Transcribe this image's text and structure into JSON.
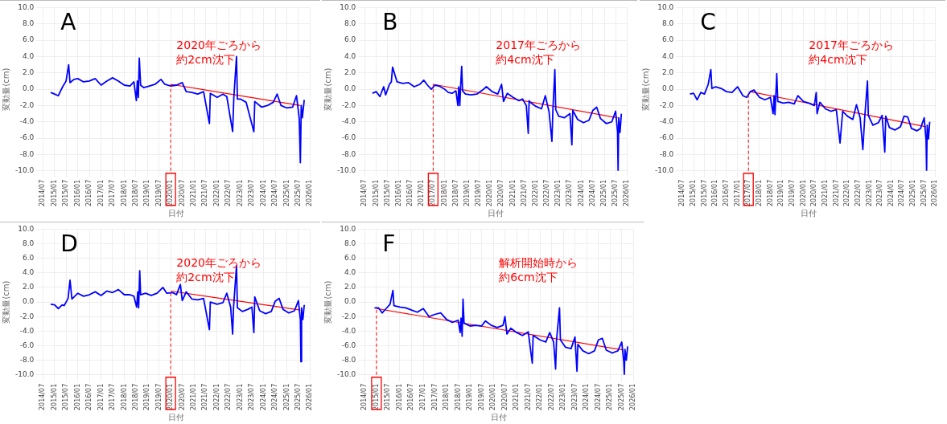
{
  "chart_data": [
    {
      "type": "line",
      "title": "A",
      "xlabel": "日付",
      "ylabel": "変動量(cm)",
      "grid": true,
      "annotations": [
        "2020年ごろから",
        "約2cm沈下"
      ],
      "xlim": [
        "2014-07",
        "2026-01"
      ],
      "ylim": [
        -10,
        10
      ],
      "xticks": [
        {
          "value": "2014-07",
          "label": "2014/07"
        },
        {
          "value": "2015-01",
          "label": "2015/01"
        },
        {
          "value": "2015-07",
          "label": "2015/07"
        },
        {
          "value": "2016-01",
          "label": "2016/01"
        },
        {
          "value": "2016-07",
          "label": "2016/07"
        },
        {
          "value": "2017-01",
          "label": "2017/01"
        },
        {
          "value": "2017-07",
          "label": "2017/07"
        },
        {
          "value": "2018-01",
          "label": "2018/01"
        },
        {
          "value": "2018-07",
          "label": "2018/07"
        },
        {
          "value": "2019-01",
          "label": "2019/01"
        },
        {
          "value": "2019-07",
          "label": "2019/07"
        },
        {
          "value": "2020-01",
          "label": "2020/01"
        },
        {
          "value": "2020-07",
          "label": "2020/07"
        },
        {
          "value": "2021-01",
          "label": "2021/01"
        },
        {
          "value": "2021-07",
          "label": "2021/07"
        },
        {
          "value": "2022-01",
          "label": "2022/01"
        },
        {
          "value": "2022-07",
          "label": "2022/07"
        },
        {
          "value": "2023-01",
          "label": "2023/01"
        },
        {
          "value": "2023-07",
          "label": "2023/07"
        },
        {
          "value": "2024-01",
          "label": "2024/01"
        },
        {
          "value": "2024-07",
          "label": "2024/07"
        },
        {
          "value": "2025-01",
          "label": "2025/01"
        },
        {
          "value": "2025-07",
          "label": "2025/07"
        },
        {
          "value": "2026-01",
          "label": "2026/01"
        }
      ],
      "yticks": [
        {
          "value": -10,
          "label": "-10.0"
        },
        {
          "value": -8,
          "label": "-8.0"
        },
        {
          "value": -6,
          "label": "-6.0"
        },
        {
          "value": -4,
          "label": "-4.0"
        },
        {
          "value": -2,
          "label": "-2.0"
        },
        {
          "value": 0,
          "label": "0.0"
        },
        {
          "value": 2,
          "label": "2.0"
        },
        {
          "value": 4,
          "label": "4.0"
        },
        {
          "value": 6,
          "label": "6.0"
        },
        {
          "value": 8,
          "label": "8.0"
        },
        {
          "value": 10,
          "label": "10.0"
        }
      ],
      "ref_lines": [
        {
          "axis": "x",
          "value": "2020-01",
          "color": "#ff0000",
          "line_style": "dashed"
        }
      ],
      "series": [
        {
          "color": "#0000ff",
          "x": [
            "2014-11",
            "2015-01",
            "2015-03",
            "2015-05",
            "2015-07",
            "2015-08-10",
            "2015-09",
            "2015-11",
            "2016-01",
            "2016-04",
            "2016-07",
            "2016-10",
            "2017-01",
            "2017-04",
            "2017-07",
            "2017-10",
            "2018-01",
            "2018-04",
            "2018-06",
            "2018-07-10",
            "2018-07-25",
            "2018-08-10",
            "2018-08-25",
            "2018-09-15",
            "2018-11",
            "2019-02",
            "2019-05",
            "2019-08",
            "2019-10",
            "2020-01",
            "2020-04",
            "2020-07",
            "2020-09",
            "2020-12",
            "2021-03",
            "2021-06",
            "2021-09-01",
            "2021-09-15",
            "2022-01",
            "2022-04",
            "2022-06",
            "2022-09-01",
            "2022-09-20",
            "2022-11-01",
            "2022-11-15",
            "2023-01",
            "2023-04",
            "2023-08-01",
            "2023-08-15",
            "2023-12",
            "2024-03",
            "2024-06",
            "2024-08",
            "2024-10",
            "2025-01",
            "2025-04",
            "2025-06",
            "2025-07-15",
            "2025-08-01",
            "2025-08-15",
            "2025-09",
            "2025-10"
          ],
          "values": [
            -0.4,
            -0.6,
            -0.8,
            0.2,
            1.0,
            3.0,
            0.8,
            1.2,
            1.3,
            0.9,
            1.0,
            1.3,
            0.5,
            1.0,
            1.4,
            1.0,
            0.5,
            0.4,
            0.9,
            -1.4,
            1.0,
            -1.0,
            3.8,
            0.5,
            0.2,
            0.4,
            0.6,
            1.2,
            0.6,
            0.4,
            0.5,
            0.8,
            -0.3,
            -0.4,
            -0.6,
            -0.3,
            -4.2,
            -0.5,
            -1.0,
            -0.6,
            -0.9,
            -5.2,
            -1.0,
            4.0,
            -1.2,
            -1.2,
            -1.6,
            -5.2,
            -1.5,
            -2.2,
            -2.0,
            -1.6,
            -0.6,
            -2.0,
            -2.3,
            -2.2,
            -0.8,
            -3.6,
            -9.0,
            -2.0,
            -3.5,
            -1.3
          ]
        },
        {
          "type": "line",
          "color": "#ff0000",
          "x": [
            "2020-01",
            "2025-08"
          ],
          "values": [
            0.6,
            -2.0
          ]
        }
      ]
    },
    {
      "type": "line",
      "title": "B",
      "xlabel": "日付",
      "ylabel": "変動量(cm)",
      "grid": true,
      "annotations": [
        "2017年ごろから",
        "約4cm沈下"
      ],
      "xlim": [
        "2014-07",
        "2026-01"
      ],
      "ylim": [
        -10,
        10
      ],
      "xticks": [
        {
          "value": "2014-07",
          "label": "2014/07"
        },
        {
          "value": "2015-01",
          "label": "2015/01"
        },
        {
          "value": "2015-07",
          "label": "2015/07"
        },
        {
          "value": "2016-01",
          "label": "2016/01"
        },
        {
          "value": "2016-07",
          "label": "2016/07"
        },
        {
          "value": "2017-01",
          "label": "2017/01"
        },
        {
          "value": "2017-07",
          "label": "2017/07"
        },
        {
          "value": "2018-01",
          "label": "2018/01"
        },
        {
          "value": "2018-07",
          "label": "2018/07"
        },
        {
          "value": "2019-01",
          "label": "2019/01"
        },
        {
          "value": "2019-07",
          "label": "2019/07"
        },
        {
          "value": "2020-01",
          "label": "2020/01"
        },
        {
          "value": "2020-07",
          "label": "2020/07"
        },
        {
          "value": "2021-01",
          "label": "2021/01"
        },
        {
          "value": "2021-07",
          "label": "2021/07"
        },
        {
          "value": "2022-01",
          "label": "2022/01"
        },
        {
          "value": "2022-07",
          "label": "2022/07"
        },
        {
          "value": "2023-01",
          "label": "2023/01"
        },
        {
          "value": "2023-07",
          "label": "2023/07"
        },
        {
          "value": "2024-01",
          "label": "2024/01"
        },
        {
          "value": "2024-07",
          "label": "2024/07"
        },
        {
          "value": "2025-01",
          "label": "2025/01"
        },
        {
          "value": "2025-07",
          "label": "2025/07"
        },
        {
          "value": "2026-01",
          "label": "2026/01"
        }
      ],
      "yticks": [
        {
          "value": -10,
          "label": "-10.0"
        },
        {
          "value": -8,
          "label": "-8.0"
        },
        {
          "value": -6,
          "label": "-6.0"
        },
        {
          "value": -4,
          "label": "-4.0"
        },
        {
          "value": -2,
          "label": "-2.0"
        },
        {
          "value": 0,
          "label": "0.0"
        },
        {
          "value": 2,
          "label": "2.0"
        },
        {
          "value": 4,
          "label": "4.0"
        },
        {
          "value": 6,
          "label": "6.0"
        },
        {
          "value": 8,
          "label": "8.0"
        },
        {
          "value": 10,
          "label": "10.0"
        }
      ],
      "ref_lines": [
        {
          "axis": "x",
          "value": "2017-07",
          "color": "#ff0000",
          "line_style": "dashed"
        }
      ],
      "series": [
        {
          "color": "#0000ff",
          "x": [
            "2014-11",
            "2015-01",
            "2015-03",
            "2015-05",
            "2015-06",
            "2015-08",
            "2015-09-01",
            "2015-09-20",
            "2015-12",
            "2016-03",
            "2016-06",
            "2016-09",
            "2016-12",
            "2017-02",
            "2017-04",
            "2017-06",
            "2017-08",
            "2017-10",
            "2018-01",
            "2018-03",
            "2018-05",
            "2018-07",
            "2018-08-01",
            "2018-08-15",
            "2018-09-01",
            "2018-09-15",
            "2018-10-01",
            "2018-10-15",
            "2018-12",
            "2019-03",
            "2019-06",
            "2019-09",
            "2019-11",
            "2020-02",
            "2020-05",
            "2020-07",
            "2020-08",
            "2020-10",
            "2021-01",
            "2021-04",
            "2021-06",
            "2021-08",
            "2021-09-01",
            "2021-09-15",
            "2021-10-01",
            "2022-01",
            "2022-04",
            "2022-06",
            "2022-08",
            "2022-09-15",
            "2022-10-01",
            "2022-11-01",
            "2022-11-15",
            "2023-01",
            "2023-04",
            "2023-07",
            "2023-08-01",
            "2023-08-15",
            "2023-11",
            "2024-02",
            "2024-05",
            "2024-07",
            "2024-09",
            "2024-11",
            "2025-02",
            "2025-05",
            "2025-07",
            "2025-08-01",
            "2025-08-10",
            "2025-08-20",
            "2025-09-10",
            "2025-10"
          ],
          "values": [
            -0.5,
            -0.3,
            -0.9,
            0.3,
            -0.7,
            0.6,
            0.9,
            2.7,
            0.9,
            0.7,
            0.8,
            0.3,
            0.6,
            1.1,
            0.5,
            0.0,
            0.5,
            0.4,
            0.0,
            -0.4,
            -0.5,
            -0.2,
            -2.0,
            0.3,
            -2.0,
            0.5,
            2.8,
            -0.2,
            -0.6,
            -0.7,
            -0.6,
            -0.1,
            0.3,
            -0.3,
            -0.6,
            0.6,
            -1.5,
            -0.5,
            -1.0,
            -1.4,
            -1.2,
            -2.0,
            -5.4,
            -1.4,
            -1.6,
            -2.1,
            -2.4,
            -0.8,
            -2.8,
            -6.4,
            -2.5,
            2.4,
            -2.5,
            -3.3,
            -3.5,
            -3.0,
            -6.8,
            -2.6,
            -3.7,
            -4.1,
            -3.8,
            -2.6,
            -2.2,
            -3.6,
            -4.2,
            -4.0,
            -2.7,
            -5.2,
            -10.0,
            -3.5,
            -5.3,
            -3.0
          ]
        },
        {
          "type": "line",
          "color": "#ff0000",
          "x": [
            "2017-07",
            "2025-08"
          ],
          "values": [
            0.6,
            -3.5
          ]
        }
      ]
    },
    {
      "type": "line",
      "title": "C",
      "xlabel": "日付",
      "ylabel": "変動量(cm)",
      "grid": true,
      "annotations": [
        "2017年ごろから",
        "約4cm沈下"
      ],
      "xlim": [
        "2014-07",
        "2026-01"
      ],
      "ylim": [
        -10,
        10
      ],
      "xticks": [
        {
          "value": "2014-07",
          "label": "2014/07"
        },
        {
          "value": "2015-01",
          "label": "2015/01"
        },
        {
          "value": "2015-07",
          "label": "2015/07"
        },
        {
          "value": "2016-01",
          "label": "2016/01"
        },
        {
          "value": "2016-07",
          "label": "2016/07"
        },
        {
          "value": "2017-01",
          "label": "2017/01"
        },
        {
          "value": "2017-07",
          "label": "2017/07"
        },
        {
          "value": "2018-01",
          "label": "2018/01"
        },
        {
          "value": "2018-07",
          "label": "2018/07"
        },
        {
          "value": "2019-01",
          "label": "2019/01"
        },
        {
          "value": "2019-07",
          "label": "2019/07"
        },
        {
          "value": "2020-01",
          "label": "2020/01"
        },
        {
          "value": "2020-07",
          "label": "2020/07"
        },
        {
          "value": "2021-01",
          "label": "2021/01"
        },
        {
          "value": "2021-07",
          "label": "2021/07"
        },
        {
          "value": "2022-01",
          "label": "2022/01"
        },
        {
          "value": "2022-07",
          "label": "2022/07"
        },
        {
          "value": "2023-01",
          "label": "2023/01"
        },
        {
          "value": "2023-07",
          "label": "2023/07"
        },
        {
          "value": "2024-01",
          "label": "2024/01"
        },
        {
          "value": "2024-07",
          "label": "2024/07"
        },
        {
          "value": "2025-01",
          "label": "2025/01"
        },
        {
          "value": "2025-07",
          "label": "2025/07"
        },
        {
          "value": "2026-01",
          "label": "2026/01"
        }
      ],
      "yticks": [
        {
          "value": -10,
          "label": "-10.0"
        },
        {
          "value": -8,
          "label": "-8.0"
        },
        {
          "value": -6,
          "label": "-6.0"
        },
        {
          "value": -4,
          "label": "-4.0"
        },
        {
          "value": -2,
          "label": "-2.0"
        },
        {
          "value": 0,
          "label": "0.0"
        },
        {
          "value": 2,
          "label": "2.0"
        },
        {
          "value": 4,
          "label": "4.0"
        },
        {
          "value": 6,
          "label": "6.0"
        },
        {
          "value": 8,
          "label": "8.0"
        },
        {
          "value": 10,
          "label": "10.0"
        }
      ],
      "ref_lines": [
        {
          "axis": "x",
          "value": "2017-07",
          "color": "#ff0000",
          "line_style": "dashed"
        }
      ],
      "series": [
        {
          "color": "#0000ff",
          "x": [
            "2014-11",
            "2015-01",
            "2015-03",
            "2015-05",
            "2015-07",
            "2015-09",
            "2015-10-15",
            "2015-11",
            "2016-01",
            "2016-04",
            "2016-07",
            "2016-10",
            "2017-01",
            "2017-04",
            "2017-06",
            "2017-08",
            "2017-10",
            "2018-01",
            "2018-04",
            "2018-07",
            "2018-08-15",
            "2018-09-01",
            "2018-09-15",
            "2018-10-15",
            "2018-11-01",
            "2019-02",
            "2019-05",
            "2019-08",
            "2019-10",
            "2020-01",
            "2020-04",
            "2020-07",
            "2020-08-01",
            "2020-08-15",
            "2020-10",
            "2021-01",
            "2021-04",
            "2021-07",
            "2021-09-01",
            "2021-10-15",
            "2022-01",
            "2022-04",
            "2022-06",
            "2022-08",
            "2022-09-15",
            "2022-10-15",
            "2022-12-01",
            "2022-12-15",
            "2023-03",
            "2023-06",
            "2023-08",
            "2023-09-15",
            "2023-10-01",
            "2023-12",
            "2024-03",
            "2024-06",
            "2024-08",
            "2024-10",
            "2024-12",
            "2025-03",
            "2025-05",
            "2025-07",
            "2025-08-01",
            "2025-08-10",
            "2025-08-20",
            "2025-09-10",
            "2025-10"
          ],
          "values": [
            -0.6,
            -0.5,
            -1.3,
            -0.4,
            -0.6,
            0.6,
            2.4,
            0.1,
            0.3,
            0.1,
            -0.3,
            -0.4,
            0.3,
            -0.8,
            -1.0,
            -0.3,
            -0.1,
            -1.0,
            -1.3,
            -1.0,
            -3.0,
            -0.8,
            -3.1,
            1.9,
            -1.5,
            -1.7,
            -1.6,
            -1.8,
            -0.8,
            -1.5,
            -1.7,
            -2.0,
            -0.4,
            -3.0,
            -1.6,
            -2.4,
            -2.7,
            -2.5,
            -6.6,
            -2.7,
            -3.3,
            -3.7,
            -1.9,
            -3.5,
            -7.4,
            -3.6,
            1.0,
            -3.2,
            -4.4,
            -4.1,
            -3.2,
            -7.7,
            -3.3,
            -4.7,
            -5.0,
            -4.6,
            -3.3,
            -3.4,
            -4.8,
            -5.1,
            -4.8,
            -3.5,
            -6.2,
            -10.0,
            -4.4,
            -6.1,
            -4.0
          ]
        },
        {
          "type": "line",
          "color": "#ff0000",
          "x": [
            "2017-08",
            "2025-08"
          ],
          "values": [
            -0.3,
            -4.6
          ]
        }
      ]
    },
    {
      "type": "line",
      "title": "D",
      "xlabel": "日付",
      "ylabel": "変動量(cm)",
      "grid": true,
      "annotations": [
        "2020年ごろから",
        "約2cm沈下"
      ],
      "xlim": [
        "2014-07",
        "2026-01"
      ],
      "ylim": [
        -10,
        10
      ],
      "xticks": [
        {
          "value": "2014-07",
          "label": "2014/07"
        },
        {
          "value": "2015-01",
          "label": "2015/01"
        },
        {
          "value": "2015-07",
          "label": "2015/07"
        },
        {
          "value": "2016-01",
          "label": "2016/01"
        },
        {
          "value": "2016-07",
          "label": "2016/07"
        },
        {
          "value": "2017-01",
          "label": "2017/01"
        },
        {
          "value": "2017-07",
          "label": "2017/07"
        },
        {
          "value": "2018-01",
          "label": "2018/01"
        },
        {
          "value": "2018-07",
          "label": "2018/07"
        },
        {
          "value": "2019-01",
          "label": "2019/01"
        },
        {
          "value": "2019-07",
          "label": "2019/07"
        },
        {
          "value": "2020-01",
          "label": "2020/01"
        },
        {
          "value": "2020-07",
          "label": "2020/07"
        },
        {
          "value": "2021-01",
          "label": "2021/01"
        },
        {
          "value": "2021-07",
          "label": "2021/07"
        },
        {
          "value": "2022-01",
          "label": "2022/01"
        },
        {
          "value": "2022-07",
          "label": "2022/07"
        },
        {
          "value": "2023-01",
          "label": "2023/01"
        },
        {
          "value": "2023-07",
          "label": "2023/07"
        },
        {
          "value": "2024-01",
          "label": "2024/01"
        },
        {
          "value": "2024-07",
          "label": "2024/07"
        },
        {
          "value": "2025-01",
          "label": "2025/01"
        },
        {
          "value": "2025-07",
          "label": "2025/07"
        },
        {
          "value": "2026-01",
          "label": "2026/01"
        }
      ],
      "yticks": [
        {
          "value": -10,
          "label": "-10.0"
        },
        {
          "value": -8,
          "label": "-8.0"
        },
        {
          "value": -6,
          "label": "-6.0"
        },
        {
          "value": -4,
          "label": "-4.0"
        },
        {
          "value": -2,
          "label": "-2.0"
        },
        {
          "value": 0,
          "label": "0.0"
        },
        {
          "value": 2,
          "label": "2.0"
        },
        {
          "value": 4,
          "label": "4.0"
        },
        {
          "value": 6,
          "label": "6.0"
        },
        {
          "value": 8,
          "label": "8.0"
        },
        {
          "value": 10,
          "label": "10.0"
        }
      ],
      "ref_lines": [
        {
          "axis": "x",
          "value": "2020-01",
          "color": "#ff0000",
          "line_style": "dashed"
        }
      ],
      "series": [
        {
          "color": "#0000ff",
          "x": [
            "2014-11",
            "2015-01",
            "2015-03",
            "2015-05",
            "2015-06",
            "2015-08",
            "2015-09-01",
            "2015-10",
            "2016-01",
            "2016-04",
            "2016-07",
            "2016-10",
            "2017-01",
            "2017-04",
            "2017-07",
            "2017-10",
            "2018-01",
            "2018-04",
            "2018-06",
            "2018-07-15",
            "2018-08-01",
            "2018-08-15",
            "2018-09-01",
            "2018-09-15",
            "2018-12",
            "2019-03",
            "2019-06",
            "2019-09",
            "2019-11",
            "2020-02",
            "2020-04",
            "2020-06",
            "2020-07",
            "2020-09",
            "2020-12",
            "2021-03",
            "2021-06",
            "2021-09-01",
            "2021-09-15",
            "2022-01",
            "2022-04",
            "2022-06",
            "2022-08",
            "2022-09-01",
            "2022-09-15",
            "2022-11-01",
            "2022-11-15",
            "2023-02",
            "2023-05",
            "2023-07",
            "2023-08-01",
            "2023-08-15",
            "2023-11",
            "2024-02",
            "2024-05",
            "2024-07",
            "2024-09",
            "2024-11",
            "2025-02",
            "2025-05",
            "2025-07",
            "2025-08-01",
            "2025-08-10",
            "2025-08-20",
            "2025-09-10",
            "2025-10"
          ],
          "values": [
            -0.3,
            -0.4,
            -0.9,
            -0.4,
            -0.5,
            0.5,
            3.0,
            0.4,
            1.2,
            0.8,
            1.0,
            1.4,
            0.9,
            1.5,
            1.3,
            1.7,
            1.0,
            1.0,
            0.8,
            -0.7,
            1.4,
            -0.8,
            4.3,
            1.0,
            1.2,
            0.9,
            1.2,
            2.0,
            1.2,
            1.3,
            1.0,
            2.4,
            0.2,
            1.4,
            0.4,
            0.3,
            0.5,
            -3.8,
            0.0,
            -0.3,
            -0.1,
            1.2,
            -0.7,
            -4.4,
            -0.8,
            5.0,
            -0.8,
            -1.3,
            -1.0,
            -0.7,
            -4.2,
            0.7,
            -1.2,
            -1.6,
            -1.3,
            0.1,
            0.5,
            -1.0,
            -1.5,
            -1.2,
            0.2,
            -2.4,
            -8.2,
            -0.8,
            -2.4,
            -0.4
          ]
        },
        {
          "type": "line",
          "color": "#ff0000",
          "x": [
            "2020-01",
            "2025-08"
          ],
          "values": [
            1.5,
            -1.1
          ]
        }
      ]
    },
    {
      "type": "line",
      "title": "F",
      "xlabel": "日付",
      "ylabel": "変動量(cm)",
      "grid": true,
      "annotations": [
        "解析開始時から",
        "約6cm沈下"
      ],
      "xlim": [
        "2014-07",
        "2026-01"
      ],
      "ylim": [
        -10,
        10
      ],
      "xticks": [
        {
          "value": "2014-07",
          "label": "2014/07"
        },
        {
          "value": "2015-01",
          "label": "2015/01"
        },
        {
          "value": "2015-07",
          "label": "2015/07"
        },
        {
          "value": "2016-01",
          "label": "2016/01"
        },
        {
          "value": "2016-07",
          "label": "2016/07"
        },
        {
          "value": "2017-01",
          "label": "2017/01"
        },
        {
          "value": "2017-07",
          "label": "2017/07"
        },
        {
          "value": "2018-01",
          "label": "2018/01"
        },
        {
          "value": "2018-07",
          "label": "2018/07"
        },
        {
          "value": "2019-01",
          "label": "2019/01"
        },
        {
          "value": "2019-07",
          "label": "2019/07"
        },
        {
          "value": "2020-01",
          "label": "2020/01"
        },
        {
          "value": "2020-07",
          "label": "2020/07"
        },
        {
          "value": "2021-01",
          "label": "2021/01"
        },
        {
          "value": "2021-07",
          "label": "2021/07"
        },
        {
          "value": "2022-01",
          "label": "2022/01"
        },
        {
          "value": "2022-07",
          "label": "2022/07"
        },
        {
          "value": "2023-01",
          "label": "2023/01"
        },
        {
          "value": "2023-07",
          "label": "2023/07"
        },
        {
          "value": "2024-01",
          "label": "2024/01"
        },
        {
          "value": "2024-07",
          "label": "2024/07"
        },
        {
          "value": "2025-01",
          "label": "2025/01"
        },
        {
          "value": "2025-07",
          "label": "2025/07"
        },
        {
          "value": "2026-01",
          "label": "2026/01"
        }
      ],
      "yticks": [
        {
          "value": -10,
          "label": "-10.0"
        },
        {
          "value": -8,
          "label": "-8.0"
        },
        {
          "value": -6,
          "label": "-6.0"
        },
        {
          "value": -4,
          "label": "-4.0"
        },
        {
          "value": -2,
          "label": "-2.0"
        },
        {
          "value": 0,
          "label": "0.0"
        },
        {
          "value": 2,
          "label": "2.0"
        },
        {
          "value": 4,
          "label": "4.0"
        },
        {
          "value": 6,
          "label": "6.0"
        },
        {
          "value": 8,
          "label": "8.0"
        },
        {
          "value": 10,
          "label": "10.0"
        }
      ],
      "ref_lines": [
        {
          "axis": "x",
          "value": "2015-01",
          "color": "#ff0000",
          "line_style": "dashed"
        }
      ],
      "series": [
        {
          "color": "#0000ff",
          "x": [
            "2014-12",
            "2015-02",
            "2015-04",
            "2015-06",
            "2015-08",
            "2015-09-15",
            "2015-10",
            "2016-01",
            "2016-04",
            "2016-07",
            "2016-10",
            "2017-01",
            "2017-04",
            "2017-07",
            "2017-10",
            "2018-01",
            "2018-04",
            "2018-07",
            "2018-08-01",
            "2018-08-15",
            "2018-09-01",
            "2018-09-15",
            "2018-10-01",
            "2019-01",
            "2019-04",
            "2019-07",
            "2019-09",
            "2019-12",
            "2020-03",
            "2020-06",
            "2020-07",
            "2020-08",
            "2020-10",
            "2021-01",
            "2021-04",
            "2021-07",
            "2021-09-01",
            "2021-09-15",
            "2022-01",
            "2022-04",
            "2022-06",
            "2022-08",
            "2022-09-01",
            "2022-09-15",
            "2022-11-01",
            "2022-11-15",
            "2023-02",
            "2023-05",
            "2023-07",
            "2023-08-01",
            "2023-08-15",
            "2023-11",
            "2024-02",
            "2024-05",
            "2024-07",
            "2024-09",
            "2024-11",
            "2025-02",
            "2025-05",
            "2025-07",
            "2025-08-01",
            "2025-08-10",
            "2025-08-20",
            "2025-09-10",
            "2025-10"
          ],
          "values": [
            -0.8,
            -0.8,
            -1.5,
            -0.9,
            -0.3,
            1.6,
            -0.5,
            -0.7,
            -0.8,
            -1.1,
            -1.4,
            -0.9,
            -2.0,
            -1.7,
            -1.5,
            -2.4,
            -2.8,
            -2.5,
            -4.2,
            -2.2,
            -4.7,
            0.4,
            -2.9,
            -3.3,
            -3.2,
            -3.3,
            -2.6,
            -3.2,
            -3.5,
            -3.2,
            -2.0,
            -4.4,
            -3.6,
            -4.2,
            -4.6,
            -4.1,
            -8.4,
            -4.6,
            -5.2,
            -5.5,
            -4.2,
            -5.5,
            -9.2,
            -5.3,
            -0.8,
            -5.2,
            -6.2,
            -6.4,
            -4.8,
            -9.5,
            -5.8,
            -6.7,
            -7.1,
            -6.7,
            -5.2,
            -5.0,
            -6.6,
            -7.0,
            -6.7,
            -5.5,
            -8.2,
            -10.0,
            -6.5,
            -8.0,
            -6.1
          ]
        },
        {
          "type": "line",
          "color": "#ff0000",
          "x": [
            "2015-01",
            "2025-08"
          ],
          "values": [
            -0.9,
            -6.6
          ]
        }
      ]
    }
  ]
}
